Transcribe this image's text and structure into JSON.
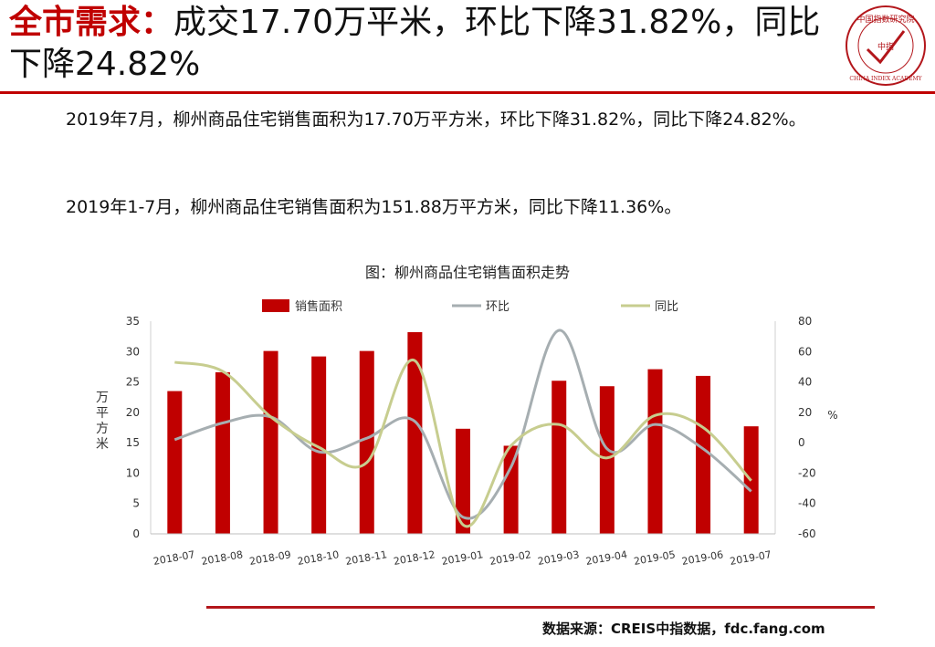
{
  "header": {
    "title_key": "全市需求：",
    "title_rest": "成交17.70万平米，环比下降31.82%，同比下降24.82%",
    "logo_text_top": "中国指数研究院",
    "logo_center": "中指",
    "logo_text_bottom": "CHINA INDEX ACADEMY"
  },
  "body": {
    "paragraph1": "2019年7月，柳州商品住宅销售面积为17.70万平方米，环比下降31.82%，同比下降24.82%。",
    "paragraph2": "2019年1-7月，柳州商品住宅销售面积为151.88万平方米，同比下降11.36%。"
  },
  "chart_data": {
    "type": "bar",
    "title": "图：柳州商品住宅销售面积走势",
    "categories": [
      "2018-07",
      "2018-08",
      "2018-09",
      "2018-10",
      "2018-11",
      "2018-12",
      "2019-01",
      "2019-02",
      "2019-03",
      "2019-04",
      "2019-05",
      "2019-06",
      "2019-07"
    ],
    "series": [
      {
        "name": "销售面积",
        "type": "bar",
        "axis": "left",
        "color": "#c00000",
        "values": [
          23.5,
          26.6,
          30.1,
          29.2,
          30.1,
          33.2,
          17.3,
          14.5,
          25.2,
          24.3,
          27.1,
          26.0,
          17.7
        ]
      },
      {
        "name": "环比",
        "type": "line",
        "axis": "right",
        "color": "#a6aeb1",
        "values": [
          2,
          13,
          17,
          -6,
          3,
          14,
          -49,
          -16,
          74,
          -4,
          12,
          -4,
          -32
        ]
      },
      {
        "name": "同比",
        "type": "line",
        "axis": "right",
        "color": "#c7cd8f",
        "values": [
          53,
          47,
          17,
          -3,
          -13,
          54,
          -54,
          -2,
          12,
          -10,
          18,
          10,
          -25
        ]
      }
    ],
    "ylabel": "万平方米",
    "ylabel_right": "%",
    "ylim": [
      0,
      35
    ],
    "y_ticks": [
      0,
      5,
      10,
      15,
      20,
      25,
      30,
      35
    ],
    "ylim_right": [
      -60,
      80
    ],
    "y_ticks_right": [
      -60,
      -40,
      -20,
      0,
      20,
      40,
      60,
      80
    ],
    "legend_position": "top",
    "grid": false
  },
  "footer": {
    "source": "数据来源：CREIS中指数据，fdc.fang.com"
  }
}
